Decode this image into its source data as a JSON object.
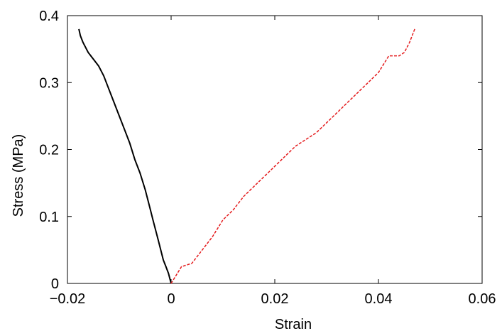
{
  "chart_data": {
    "type": "line",
    "title": "",
    "xlabel": "Strain",
    "ylabel": "Stress (MPa)",
    "xlim": [
      -0.02,
      0.06
    ],
    "ylim": [
      0,
      0.4
    ],
    "xticks": [
      -0.02,
      0,
      0.02,
      0.04,
      0.06
    ],
    "xtick_labels": [
      "−0.02",
      "0",
      "0.02",
      "0.04",
      "0.06"
    ],
    "yticks": [
      0,
      0.1,
      0.2,
      0.3,
      0.4
    ],
    "ytick_labels": [
      "0",
      "0.1",
      "0.2",
      "0.3",
      "0.4"
    ],
    "grid": false,
    "legend": "none",
    "series": [
      {
        "color": "#000000",
        "style": "solid",
        "x": [
          0.0,
          -0.0005,
          -0.001,
          -0.0015,
          -0.002,
          -0.0025,
          -0.003,
          -0.0035,
          -0.004,
          -0.0045,
          -0.005,
          -0.006,
          -0.007,
          -0.008,
          -0.009,
          -0.01,
          -0.011,
          -0.012,
          -0.013,
          -0.014,
          -0.015,
          -0.016,
          -0.017,
          -0.0175,
          -0.0178
        ],
        "y": [
          0.0,
          0.015,
          0.025,
          0.035,
          0.05,
          0.065,
          0.08,
          0.095,
          0.11,
          0.125,
          0.14,
          0.165,
          0.185,
          0.21,
          0.23,
          0.25,
          0.27,
          0.29,
          0.31,
          0.325,
          0.335,
          0.345,
          0.36,
          0.37,
          0.38
        ]
      },
      {
        "color": "#e41a1c",
        "style": "dashed",
        "x": [
          0.0,
          0.002,
          0.004,
          0.006,
          0.008,
          0.01,
          0.012,
          0.014,
          0.016,
          0.018,
          0.02,
          0.022,
          0.024,
          0.026,
          0.028,
          0.03,
          0.032,
          0.034,
          0.036,
          0.038,
          0.04,
          0.042,
          0.044,
          0.045,
          0.046,
          0.047
        ],
        "y": [
          0.0,
          0.025,
          0.03,
          0.05,
          0.07,
          0.095,
          0.11,
          0.13,
          0.145,
          0.16,
          0.175,
          0.19,
          0.205,
          0.215,
          0.225,
          0.24,
          0.255,
          0.27,
          0.285,
          0.3,
          0.315,
          0.34,
          0.34,
          0.345,
          0.36,
          0.38
        ]
      }
    ]
  }
}
